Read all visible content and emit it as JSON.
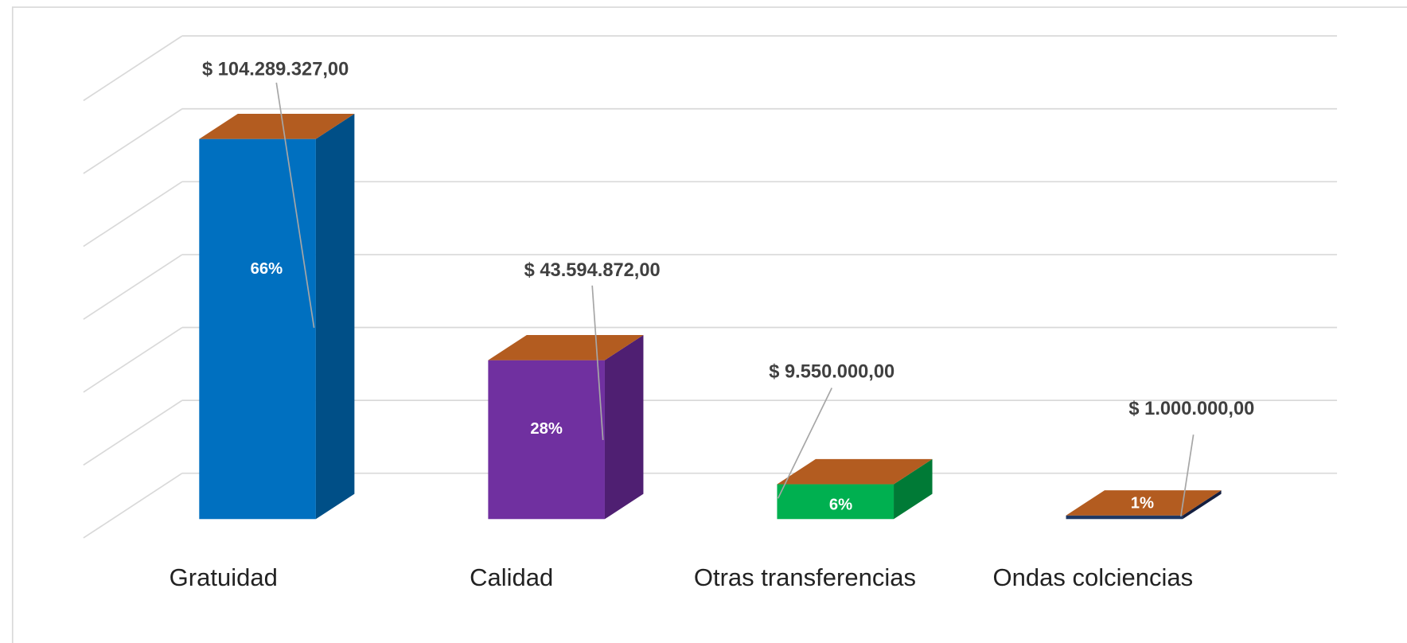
{
  "chart_data": {
    "type": "bar3d",
    "categories": [
      "Gratuidad",
      "Calidad",
      "Otras transferencias",
      "Ondas colciencias"
    ],
    "series": [
      {
        "values": [
          104289327,
          43594872,
          9550000,
          1000000
        ],
        "value_labels": [
          "$ 104.289.327,00",
          "$ 43.594.872,00",
          "$ 9.550.000,00",
          "$ 1.000.000,00"
        ],
        "share_labels": [
          "66%",
          "28%",
          "6%",
          "1%"
        ],
        "colors": [
          "#0070c0",
          "#7030a0",
          "#00b050",
          "#1f3864"
        ],
        "side_colors": [
          "#004f87",
          "#4f1f72",
          "#007a36",
          "#141f40"
        ],
        "top_color": "#b35c20"
      }
    ],
    "ylim": [
      0,
      120000000
    ],
    "yticks": [
      0,
      20000000,
      40000000,
      60000000,
      80000000,
      100000000,
      120000000
    ],
    "grid": true
  }
}
